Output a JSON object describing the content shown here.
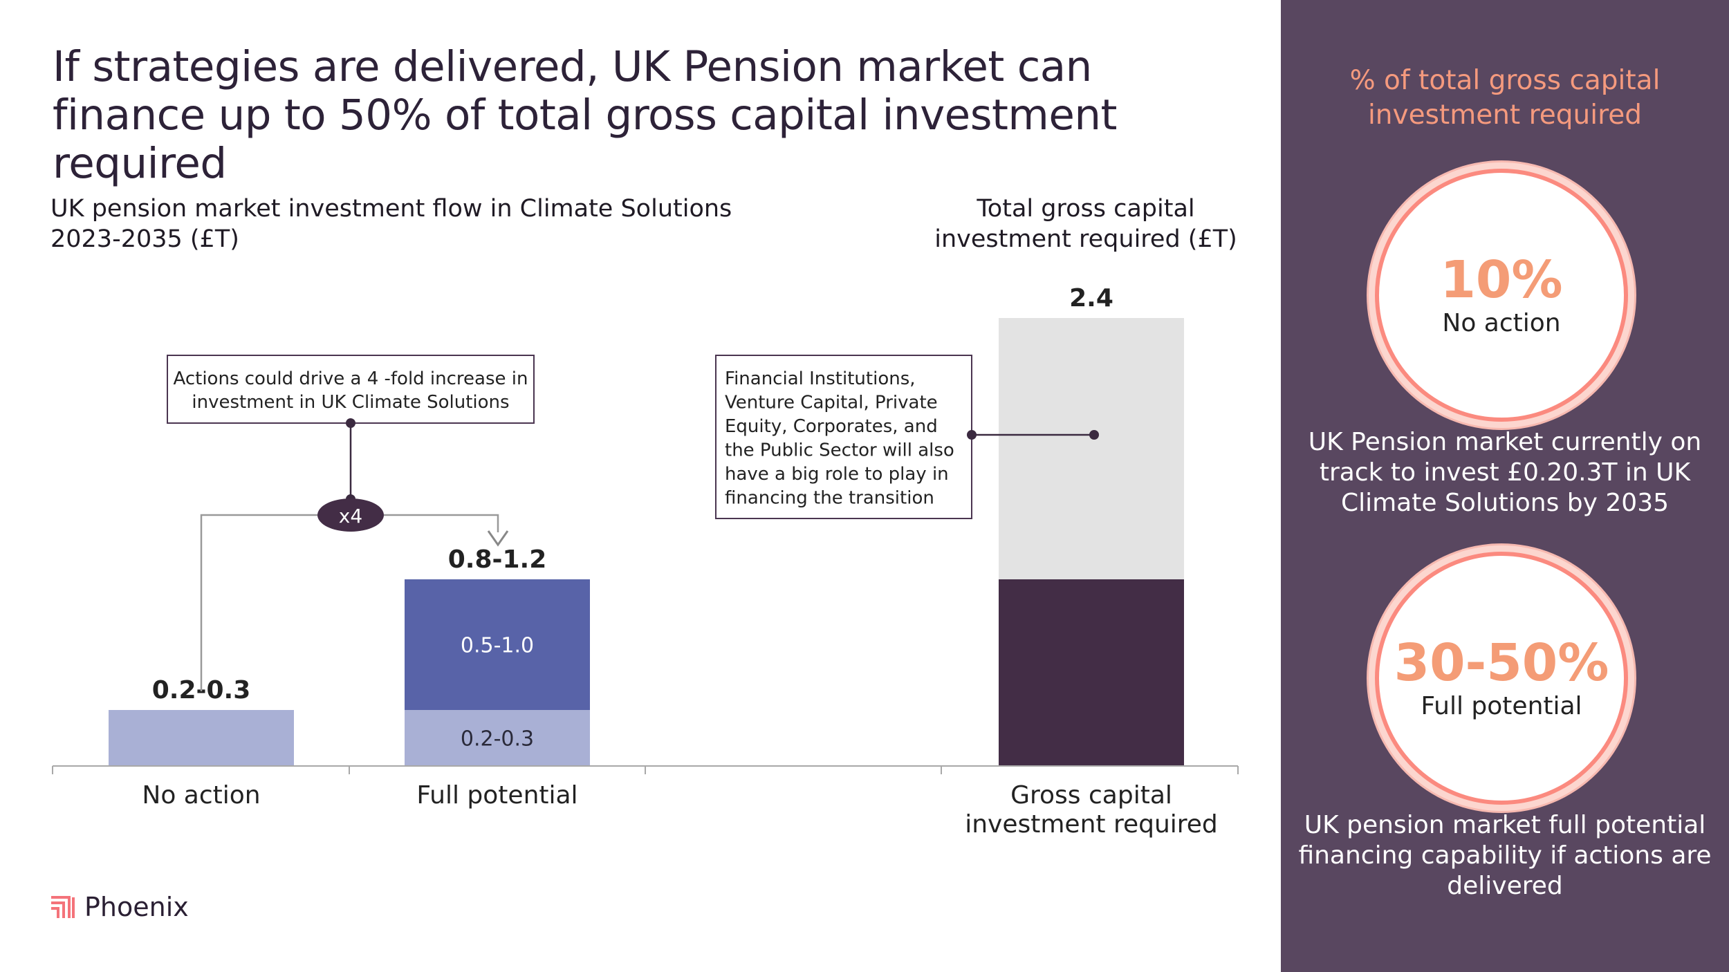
{
  "title": "If strategies are delivered, UK Pension market can finance up to 50% of total gross capital investment required",
  "left_subtitle": "UK pension market investment flow in Climate Solutions 2023-2035 (£T)",
  "right_subtitle": "Total gross capital investment required (£T)",
  "annotations": {
    "fold": "Actions could drive a 4 -fold increase in investment in UK Climate Solutions",
    "x4": "x4",
    "institutions": "Financial Institutions, Venture Capital, Private Equity, Corporates, and the Public Sector will also have a big role to play in financing the transition"
  },
  "chart_data": {
    "type": "bar",
    "stacked": true,
    "categories": [
      "No action",
      "Full potential",
      "",
      "Gross capital investment required"
    ],
    "ylim": [
      0,
      2.4
    ],
    "bars": [
      {
        "category": "No action",
        "total_label": "0.2-0.3",
        "segments": [
          {
            "value": 0.3,
            "label": "",
            "color": "#a9b0d5"
          }
        ]
      },
      {
        "category": "Full potential",
        "total_label": "0.8-1.2",
        "segments": [
          {
            "value": 0.3,
            "label": "0.2-0.3",
            "color": "#a9b0d5"
          },
          {
            "value": 0.7,
            "label": "0.5-1.0",
            "color": "#5863a8"
          }
        ]
      },
      {
        "category": "Gross capital investment required",
        "total_label": "2.4",
        "segments": [
          {
            "value": 1.0,
            "label": "",
            "color": "#432d46"
          },
          {
            "value": 1.4,
            "label": "",
            "color": "#e3e3e3"
          }
        ]
      }
    ]
  },
  "sidebar": {
    "heading": "% of total gross capital investment required",
    "circle1": {
      "value": "10%",
      "label": "No action"
    },
    "text1": "UK Pension market currently on track to invest £0.20.3T in UK Climate Solutions by 2035",
    "circle2": {
      "value": "30-50%",
      "label": "Full potential"
    },
    "text2": "UK pension market full potential financing capability if actions are delivered",
    "background_color": "#594760",
    "accent_color": "#f49c76"
  },
  "logo": {
    "name": "Phoenix",
    "color": "#f4737a"
  }
}
